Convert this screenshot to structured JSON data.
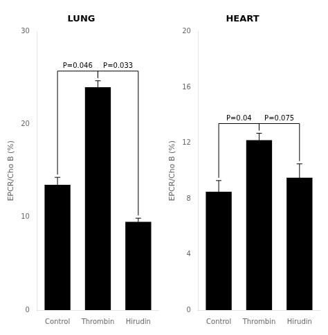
{
  "chart_data": [
    {
      "type": "bar",
      "title": "LUNG",
      "ylabel": "EPCR/Cho B (%)",
      "categories": [
        "Control",
        "Thrombin",
        "Hirudin"
      ],
      "values": [
        13.5,
        24.0,
        9.5
      ],
      "errors": [
        0.8,
        0.7,
        0.4
      ],
      "color": "#000000",
      "ylim": [
        0,
        30
      ],
      "yticks": [
        0,
        10,
        20,
        30
      ],
      "grid": false,
      "annotations": [
        {
          "text": "P=0.046",
          "categories": [
            "Control",
            "Thrombin"
          ]
        },
        {
          "text": "P=0.033",
          "categories": [
            "Thrombin",
            "Hirudin"
          ]
        }
      ]
    },
    {
      "type": "bar",
      "title": "HEART",
      "ylabel": "EPCR/Cho B (%)",
      "categories": [
        "Control",
        "Thrombin",
        "Hirudin"
      ],
      "values": [
        8.5,
        12.2,
        9.5
      ],
      "errors": [
        0.8,
        0.5,
        1.0
      ],
      "color": "#000000",
      "ylim": [
        0,
        20
      ],
      "yticks": [
        0,
        4,
        8,
        12,
        16,
        20
      ],
      "grid": false,
      "annotations": [
        {
          "text": "P=0.04",
          "categories": [
            "Control",
            "Thrombin"
          ]
        },
        {
          "text": "P=0.075",
          "categories": [
            "Thrombin",
            "Hirudin"
          ]
        }
      ]
    }
  ]
}
